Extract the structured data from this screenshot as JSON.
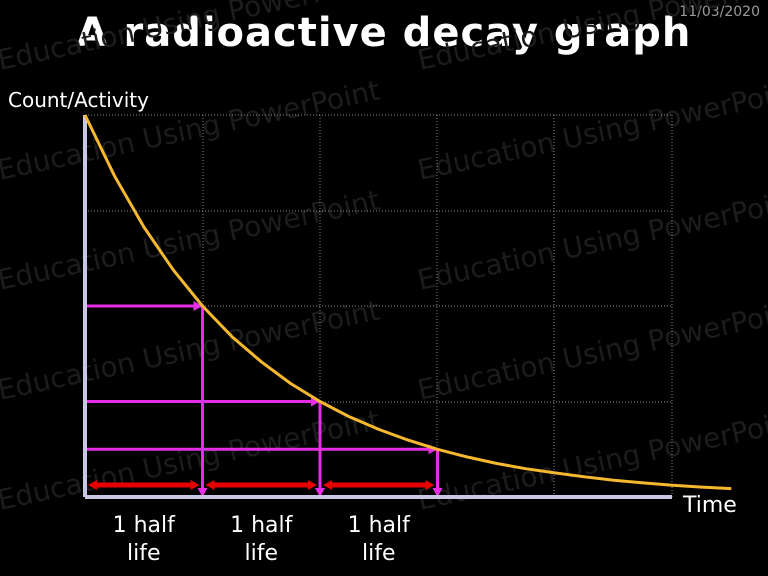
{
  "slide": {
    "title": "A radioactive decay graph",
    "date": "11/03/2020",
    "watermark": "Education Using PowerPoint"
  },
  "chart_data": {
    "type": "line",
    "title": "A radioactive decay graph",
    "xlabel": "Time",
    "ylabel": "Count/Activity",
    "grid": true,
    "series": [
      {
        "x": [
          0,
          0.25,
          0.5,
          0.75,
          1,
          1.25,
          1.5,
          1.75,
          2,
          2.25,
          2.5,
          2.75,
          3,
          3.25,
          3.5,
          3.75,
          4,
          4.25,
          4.5,
          4.75,
          5,
          5.25,
          5.5
        ],
        "y": [
          1,
          0.841,
          0.707,
          0.595,
          0.5,
          0.42,
          0.354,
          0.297,
          0.25,
          0.21,
          0.177,
          0.149,
          0.125,
          0.105,
          0.088,
          0.074,
          0.063,
          0.053,
          0.044,
          0.037,
          0.031,
          0.026,
          0.022
        ]
      }
    ],
    "half_life_markers": [
      {
        "x": 1,
        "y": 0.5
      },
      {
        "x": 2,
        "y": 0.25
      },
      {
        "x": 3,
        "y": 0.125
      }
    ],
    "half_life_labels": [
      {
        "line1": "1 half",
        "line2": "life"
      },
      {
        "line1": "1 half",
        "line2": "life"
      },
      {
        "line1": "1 half",
        "line2": "life"
      }
    ],
    "colors": {
      "curve": "#f5b82e",
      "guides": "#e62ee6",
      "half_life_arrows": "#e60000",
      "axes": "#c8c8e6",
      "grid": "#8a8a8a"
    }
  }
}
